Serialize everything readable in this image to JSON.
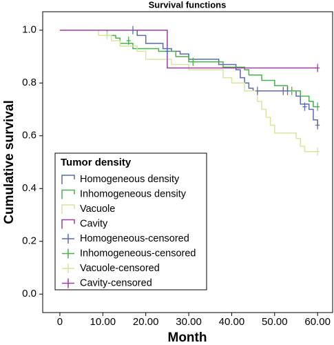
{
  "chart_data": {
    "type": "step",
    "title": "Survival functions",
    "x_label": "Month",
    "y_label": "Cumulative survival",
    "legend_title": "Tumor density",
    "legend_position": "lower left",
    "xlim": [
      -4,
      63.5
    ],
    "ylim": [
      -0.07,
      1.07
    ],
    "xticks": [
      0,
      {
        "value": 10,
        "label": "10.00"
      },
      {
        "value": 20,
        "label": "20.00"
      },
      {
        "value": 30,
        "label": "30.00"
      },
      {
        "value": 40,
        "label": "40.00"
      },
      {
        "value": 50,
        "label": "50.00"
      },
      {
        "value": 60,
        "label": "60.00"
      }
    ],
    "yticks": [
      {
        "value": 0,
        "label": "0.0"
      },
      0.2,
      0.4,
      0.6,
      0.8,
      {
        "value": 1,
        "label": "1.0"
      }
    ],
    "series": [
      {
        "name": "Homogeneous density",
        "color": "#5a6ab0",
        "marker": "line",
        "x": [
          0,
          18,
          20,
          24,
          26,
          28,
          30,
          37,
          41,
          42,
          43,
          44,
          45,
          55,
          56,
          58,
          59,
          60
        ],
        "values": [
          1.0,
          0.98,
          0.95,
          0.93,
          0.92,
          0.91,
          0.89,
          0.87,
          0.85,
          0.82,
          0.8,
          0.78,
          0.77,
          0.75,
          0.72,
          0.7,
          0.66,
          0.64
        ]
      },
      {
        "name": "Inhomogeneous density",
        "color": "#4cae4c",
        "marker": "line",
        "x": [
          0,
          11,
          13,
          14,
          17,
          23,
          27,
          30,
          38,
          43,
          44,
          47,
          50,
          53,
          56,
          58,
          59,
          60
        ],
        "values": [
          1.0,
          0.98,
          0.97,
          0.95,
          0.93,
          0.92,
          0.9,
          0.88,
          0.86,
          0.85,
          0.83,
          0.81,
          0.79,
          0.77,
          0.75,
          0.73,
          0.71,
          0.71
        ]
      },
      {
        "name": "Vacuole",
        "color": "#d6e6a0",
        "marker": "line",
        "x": [
          0,
          9,
          12,
          14,
          18,
          20,
          26,
          30,
          38,
          40,
          43,
          46,
          47,
          48,
          49,
          50,
          55,
          56,
          57,
          60
        ],
        "values": [
          1.0,
          0.98,
          0.96,
          0.94,
          0.92,
          0.89,
          0.87,
          0.85,
          0.82,
          0.8,
          0.77,
          0.73,
          0.7,
          0.67,
          0.64,
          0.61,
          0.59,
          0.56,
          0.54,
          0.54
        ]
      },
      {
        "name": "Cavity",
        "color": "#9b3d9b",
        "marker": "line",
        "x": [
          0,
          25,
          60
        ],
        "values": [
          1.0,
          0.857,
          0.857
        ]
      },
      {
        "name": "Homogeneous-censored",
        "color": "#5a6ab0",
        "marker": "plus",
        "x": [
          17,
          25,
          46,
          52,
          53,
          57,
          60
        ],
        "values": [
          1.0,
          0.92,
          0.77,
          0.77,
          0.77,
          0.71,
          0.64
        ]
      },
      {
        "name": "Inhomogeneous-censored",
        "color": "#4cae4c",
        "marker": "plus",
        "x": [
          16,
          31,
          54,
          60
        ],
        "values": [
          0.96,
          0.88,
          0.77,
          0.71
        ]
      },
      {
        "name": "Vacuole-censored",
        "color": "#d6e6a0",
        "marker": "plus",
        "x": [
          11,
          60
        ],
        "values": [
          0.98,
          0.54
        ]
      },
      {
        "name": "Cavity-censored",
        "color": "#9b3d9b",
        "marker": "plus",
        "x": [
          60
        ],
        "values": [
          0.857
        ]
      }
    ]
  }
}
